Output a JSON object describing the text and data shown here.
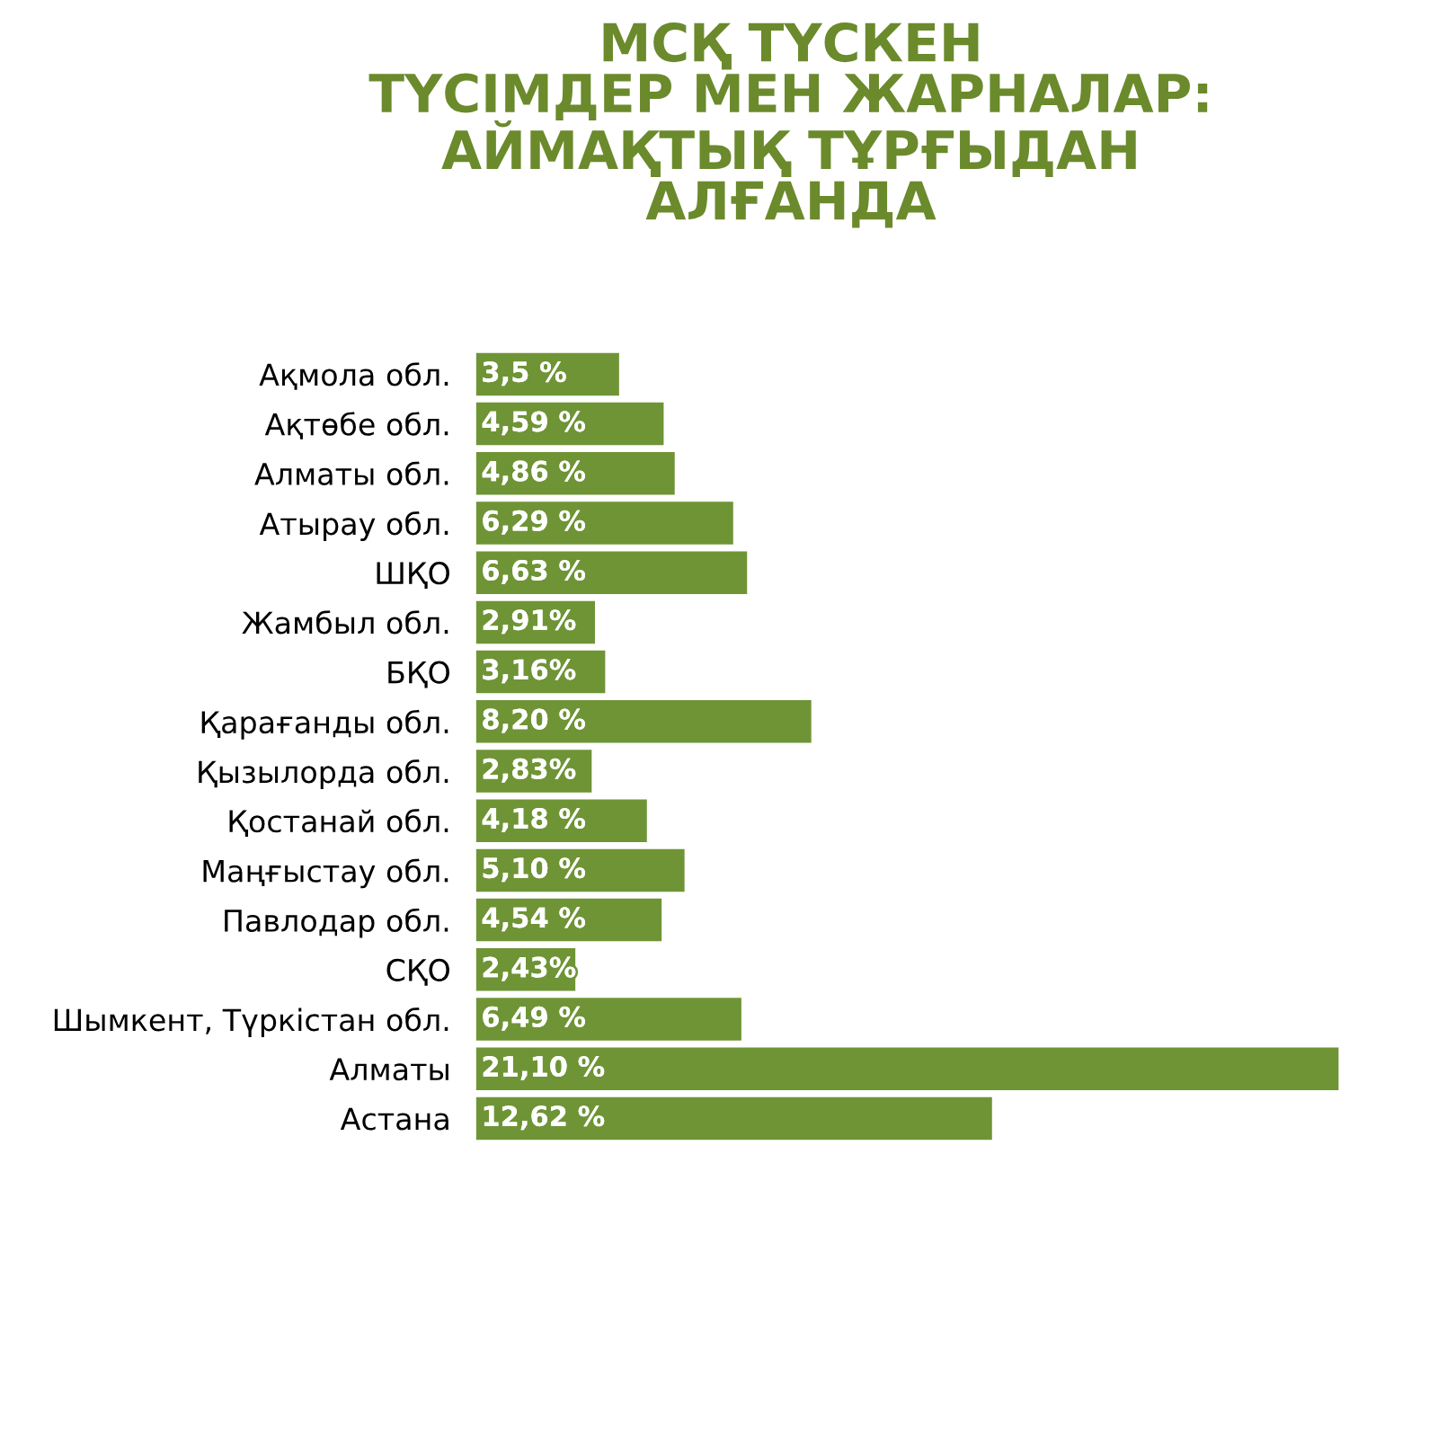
{
  "chart_data": {
    "type": "bar",
    "orientation": "horizontal",
    "title": "МСҚ ТҮСКЕН\nТҮСІМДЕР МЕН ЖАРНАЛАР:\nАЙМАҚТЫҚ ТҰРҒЫДАН\nАЛҒАНДА",
    "categories": [
      "Ақмола обл.",
      "Ақтөбе обл.",
      "Алматы обл.",
      "Атырау обл.",
      "ШҚО",
      "Жамбыл обл.",
      "БҚО",
      "Қарағанды обл.",
      "Қызылорда обл.",
      "Қостанай обл.",
      "Маңғыстау обл.",
      "Павлодар обл.",
      "СҚО",
      "Шымкент, Түркістан обл.",
      "Алматы",
      "Астана"
    ],
    "values": [
      3.5,
      4.59,
      4.86,
      6.29,
      6.63,
      2.91,
      3.16,
      8.2,
      2.83,
      4.18,
      5.1,
      4.54,
      2.43,
      6.49,
      21.1,
      12.62
    ],
    "value_labels": [
      "3,5 %",
      "4,59 %",
      "4,86 %",
      "6,29 %",
      "6,63 %",
      "2,91%",
      "3,16%",
      "8,20 %",
      "2,83%",
      "4,18 %",
      "5,10 %",
      "4,54 %",
      "2,43%",
      "6,49 %",
      "21,10 %",
      "12,62 %"
    ],
    "color": "#6f9436"
  }
}
